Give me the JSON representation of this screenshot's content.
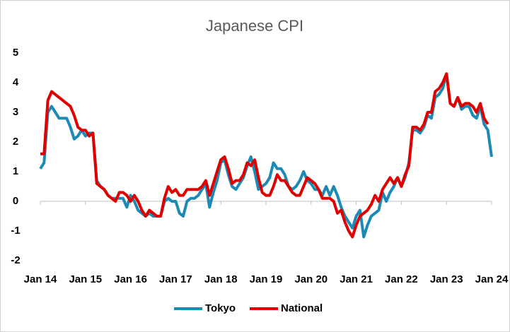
{
  "chart_data": {
    "type": "line",
    "title": "Japanese CPI",
    "categories": [
      "Jan 14",
      null,
      null,
      null,
      null,
      null,
      null,
      null,
      null,
      null,
      null,
      null,
      "Jan 15",
      null,
      null,
      null,
      null,
      null,
      null,
      null,
      null,
      null,
      null,
      null,
      "Jan 16",
      null,
      null,
      null,
      null,
      null,
      null,
      null,
      null,
      null,
      null,
      null,
      "Jan 17",
      null,
      null,
      null,
      null,
      null,
      null,
      null,
      null,
      null,
      null,
      null,
      "Jan 18",
      null,
      null,
      null,
      null,
      null,
      null,
      null,
      null,
      null,
      null,
      null,
      "Jan 19",
      null,
      null,
      null,
      null,
      null,
      null,
      null,
      null,
      null,
      null,
      null,
      "Jan 20",
      null,
      null,
      null,
      null,
      null,
      null,
      null,
      null,
      null,
      null,
      null,
      "Jan 21",
      null,
      null,
      null,
      null,
      null,
      null,
      null,
      null,
      null,
      null,
      null,
      "Jan 22",
      null,
      null,
      null,
      null,
      null,
      null,
      null,
      null,
      null,
      null,
      null,
      "Jan 23",
      null,
      null,
      null,
      null,
      null,
      null,
      null,
      null,
      null,
      null,
      null,
      "Jan 24"
    ],
    "series": [
      {
        "name": "Tokyo",
        "color": "#1b8ab5",
        "values": [
          1.1,
          1.3,
          3.0,
          3.2,
          3.0,
          2.8,
          2.8,
          2.8,
          2.5,
          2.1,
          2.2,
          2.4,
          2.2,
          2.3,
          2.3,
          0.7,
          0.5,
          0.4,
          0.2,
          0.1,
          0.1,
          0.1,
          0.1,
          -0.2,
          0.2,
          0.0,
          -0.3,
          -0.4,
          -0.5,
          -0.4,
          -0.5,
          -0.5,
          -0.5,
          0.0,
          0.1,
          0.0,
          0.0,
          -0.4,
          -0.5,
          0.0,
          0.1,
          0.1,
          0.2,
          0.4,
          0.6,
          -0.2,
          0.3,
          0.7,
          1.3,
          1.4,
          0.9,
          0.5,
          0.4,
          0.6,
          0.8,
          1.2,
          1.5,
          1.0,
          0.4,
          0.5,
          0.6,
          0.8,
          1.3,
          1.1,
          1.1,
          0.9,
          0.5,
          0.4,
          0.5,
          0.7,
          1.0,
          0.7,
          0.6,
          0.4,
          0.4,
          0.2,
          0.5,
          0.2,
          0.5,
          0.2,
          -0.2,
          -0.5,
          -0.7,
          -0.9,
          -0.5,
          -0.3,
          -1.2,
          -0.8,
          -0.5,
          -0.4,
          -0.3,
          0.3,
          0.0,
          0.3,
          0.5,
          0.8,
          0.5,
          0.8,
          1.3,
          2.4,
          2.4,
          2.3,
          2.5,
          2.9,
          2.8,
          3.5,
          3.6,
          3.8,
          4.3,
          3.3,
          3.2,
          3.5,
          3.1,
          3.2,
          3.2,
          2.9,
          2.8,
          3.2,
          2.6,
          2.4,
          1.5
        ]
      },
      {
        "name": "National",
        "color": "#e00000",
        "values": [
          1.6,
          1.6,
          3.4,
          3.7,
          3.6,
          3.5,
          3.4,
          3.3,
          3.2,
          2.9,
          2.5,
          2.4,
          2.4,
          2.2,
          2.3,
          0.6,
          0.5,
          0.4,
          0.2,
          0.1,
          0.0,
          0.3,
          0.3,
          0.2,
          0.0,
          0.2,
          0.0,
          -0.3,
          -0.5,
          -0.3,
          -0.4,
          -0.5,
          -0.5,
          0.1,
          0.5,
          0.3,
          0.4,
          0.2,
          0.2,
          0.4,
          0.4,
          0.4,
          0.4,
          0.5,
          0.7,
          0.2,
          0.6,
          1.0,
          1.4,
          1.5,
          1.1,
          0.6,
          0.7,
          0.7,
          0.9,
          1.3,
          1.2,
          1.4,
          0.8,
          0.3,
          0.2,
          0.2,
          0.5,
          0.9,
          0.7,
          0.7,
          0.5,
          0.3,
          0.2,
          0.2,
          0.5,
          0.8,
          0.7,
          0.6,
          0.4,
          0.1,
          0.1,
          0.1,
          0.0,
          -0.4,
          -0.3,
          -0.7,
          -1.0,
          -1.2,
          -0.8,
          -0.5,
          -0.4,
          -0.3,
          -0.1,
          0.2,
          0.0,
          0.4,
          0.6,
          0.8,
          0.6,
          0.8,
          0.5,
          0.9,
          1.2,
          2.5,
          2.5,
          2.4,
          2.6,
          3.0,
          3.0,
          3.7,
          3.8,
          4.0,
          4.3,
          3.3,
          3.2,
          3.5,
          3.2,
          3.3,
          3.3,
          3.2,
          3.0,
          3.3,
          2.8,
          2.6,
          null
        ]
      }
    ],
    "ylim": [
      -2,
      5
    ],
    "yticks": [
      -2,
      -1,
      0,
      1,
      2,
      3,
      4,
      5
    ],
    "grid": false,
    "legend": "bottom"
  }
}
